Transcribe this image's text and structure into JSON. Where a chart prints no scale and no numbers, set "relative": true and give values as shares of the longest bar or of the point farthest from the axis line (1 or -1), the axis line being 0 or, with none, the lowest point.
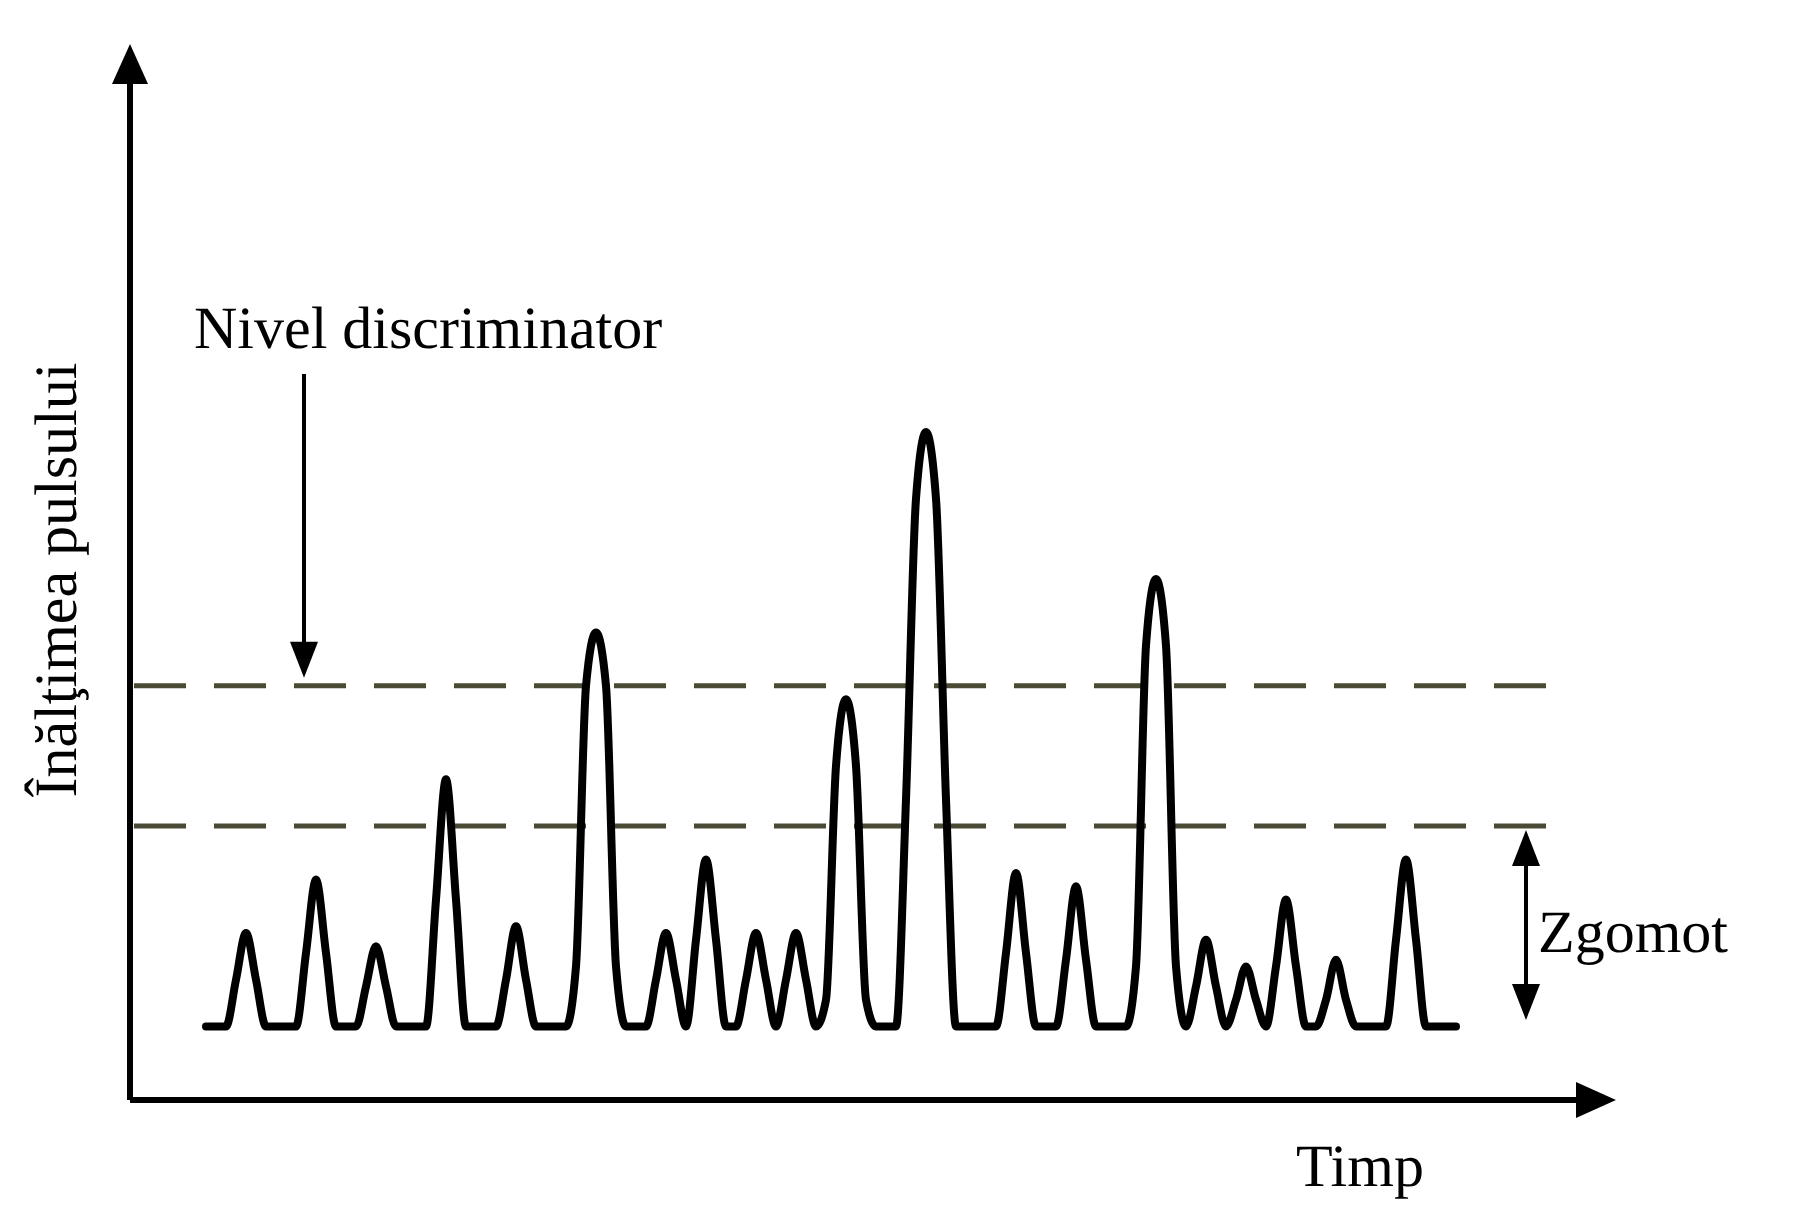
{
  "chart_data": {
    "type": "line",
    "relative": true,
    "xlabel": "Timp",
    "ylabel": "Înălţimea pulsului",
    "categories": [
      null,
      null,
      null,
      null,
      null,
      null,
      null,
      null,
      null,
      null,
      null,
      null,
      null,
      null,
      null,
      null,
      null,
      null,
      null,
      null,
      null,
      null,
      null,
      null,
      null,
      null,
      null,
      null,
      null,
      null,
      null,
      null,
      null,
      null,
      null,
      null,
      null,
      null,
      null,
      null,
      null,
      null,
      null,
      null,
      null,
      null,
      null,
      null,
      null,
      null,
      null,
      null,
      null,
      null,
      null,
      null,
      null,
      null,
      null,
      null,
      null,
      null,
      null,
      null,
      null,
      null,
      null,
      null,
      null,
      null,
      null,
      null,
      null,
      null,
      null,
      null,
      null,
      null,
      null,
      null,
      null,
      null,
      null,
      null,
      null,
      null,
      null,
      null,
      null,
      null,
      null,
      null,
      null,
      null,
      null,
      null,
      null,
      null,
      null,
      null,
      null,
      null,
      null,
      null,
      null,
      null,
      null,
      null,
      null,
      null,
      null,
      null,
      null,
      null,
      null,
      null,
      null,
      null,
      null,
      null,
      null,
      null,
      null,
      null,
      null,
      null
    ],
    "series": [
      {
        "color": "#000000",
        "values": [
          0.11,
          0.11,
          0.11,
          0.18,
          0.25,
          0.18,
          0.11,
          0.11,
          0.11,
          0.11,
          0.22,
          0.33,
          0.22,
          0.11,
          0.11,
          0.11,
          0.17,
          0.23,
          0.17,
          0.11,
          0.11,
          0.11,
          0.11,
          0.3,
          0.48,
          0.3,
          0.11,
          0.11,
          0.11,
          0.11,
          0.18,
          0.26,
          0.18,
          0.11,
          0.11,
          0.11,
          0.11,
          0.2,
          0.62,
          0.7,
          0.62,
          0.2,
          0.11,
          0.11,
          0.11,
          0.18,
          0.25,
          0.18,
          0.11,
          0.24,
          0.36,
          0.24,
          0.11,
          0.11,
          0.18,
          0.25,
          0.18,
          0.11,
          0.18,
          0.25,
          0.18,
          0.11,
          0.15,
          0.5,
          0.6,
          0.5,
          0.15,
          0.11,
          0.11,
          0.11,
          0.45,
          0.9,
          1,
          0.9,
          0.45,
          0.11,
          0.11,
          0.11,
          0.11,
          0.11,
          0.22,
          0.34,
          0.22,
          0.11,
          0.11,
          0.11,
          0.21,
          0.32,
          0.21,
          0.11,
          0.11,
          0.11,
          0.11,
          0.2,
          0.68,
          0.78,
          0.68,
          0.2,
          0.11,
          0.17,
          0.24,
          0.17,
          0.11,
          0.15,
          0.2,
          0.15,
          0.11,
          0.2,
          0.3,
          0.2,
          0.11,
          0.11,
          0.15,
          0.21,
          0.15,
          0.11,
          0.11,
          0.11,
          0.11,
          0.24,
          0.36,
          0.24,
          0.11,
          0.11,
          0.11,
          0.11
        ]
      }
    ],
    "ref_lines": [
      {
        "axis": "y",
        "value": 0.62,
        "color": "#4b4a35",
        "line_style": "dashed"
      },
      {
        "axis": "y",
        "value": 0.41,
        "color": "#4b4a35",
        "line_style": "dashed"
      }
    ],
    "annotations": [
      "Nivel discriminator",
      "Zgomot"
    ]
  }
}
